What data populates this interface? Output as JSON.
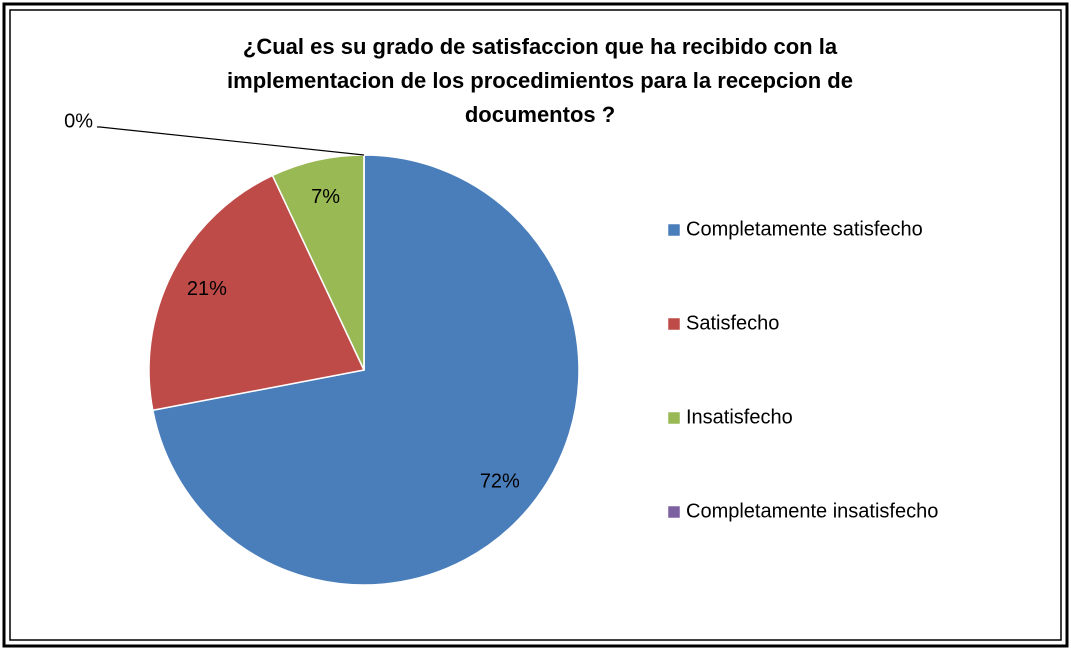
{
  "chart_data": {
    "type": "pie",
    "title": "¿Cual es su grado de satisfaccion que ha recibido con la implementacion de los procedimientos para la recepcion de documentos ?",
    "categories": [
      "Completamente satisfecho",
      "Satisfecho",
      "Insatisfecho",
      "Completamente insatisfecho"
    ],
    "values": [
      72,
      21,
      7,
      0
    ],
    "value_labels": [
      "72%",
      "21%",
      "7%",
      "0%"
    ],
    "colors": [
      "#4a7ebb",
      "#be4b48",
      "#98b954",
      "#7d60a0"
    ],
    "legend": "right"
  }
}
